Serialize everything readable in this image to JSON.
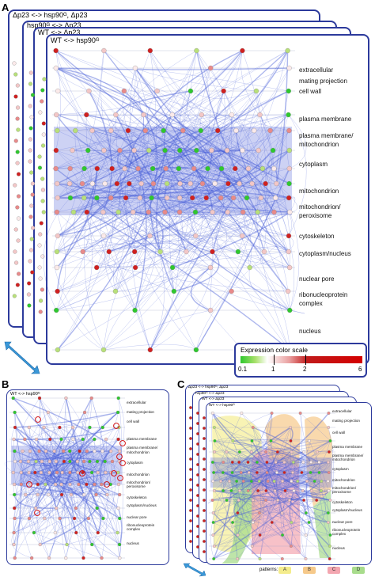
{
  "panels": {
    "a": {
      "label": "A",
      "stack_titles": [
        "Δp23 <-> hsp90ᴳ, Δp23",
        "hsp90ᴳ <-> Δp23",
        "WT <-> Δp23",
        "WT <-> hsp90ᴳ"
      ],
      "locations": [
        "extracellular",
        "mating projection",
        "cell wall",
        "plasma membrane",
        "plasma membrane/",
        "mitochondrion",
        "cytoplasm",
        "mitochondrion",
        "mitochondrion/",
        "peroxisome",
        "cytoskeleton",
        "cytoplasm/nucleus",
        "nuclear pore",
        "ribonucleoprotein",
        "complex",
        "nucleus"
      ]
    },
    "b": {
      "label": "B",
      "title": "WT <-> hsp90ᴳ",
      "locations": [
        "extracellular",
        "mating projection",
        "cell wall",
        "plasma membrane",
        "plasma membrane/",
        "mitochondrion",
        "cytoplasm",
        "mitochondrion",
        "mitochondrion/",
        "peroxisome",
        "cytoskeleton",
        "cytoplasm/nucleus",
        "nuclear pore",
        "ribonucleoprotein",
        "complex",
        "nucleus"
      ]
    },
    "c": {
      "label": "C",
      "stack_titles": [
        "Δp23 <-> hsp90ᴳ, Δp23",
        "hsp90ᴳ <-> Δp23",
        "WT <-> Δp23",
        "WT <-> hsp90ᴳ"
      ],
      "locations": [
        "extracellular",
        "mating projection",
        "cell wall",
        "plasma membrane",
        "plasma membrane/",
        "mitochondrion",
        "cytoplasm",
        "mitochondrion",
        "mitochondrion/",
        "peroxisome",
        "cytoskeleton",
        "cytoplasm/nucleus",
        "nuclear pore",
        "ribonucleoprotein",
        "complex",
        "nucleus"
      ]
    }
  },
  "legend": {
    "title": "Expression color scale",
    "ticks": [
      "0.1",
      "1",
      "2",
      "6"
    ]
  },
  "patterns": {
    "label": "patterns:",
    "items": [
      {
        "letter": "A",
        "color": "#f4ec8c"
      },
      {
        "letter": "B",
        "color": "#f6c98a"
      },
      {
        "letter": "C",
        "color": "#f3a6b0"
      },
      {
        "letter": "D",
        "color": "#a8dc8c"
      }
    ]
  },
  "colors": {
    "frame": "#2c3a9c",
    "edge": "#4a5fd8",
    "high": "#d40000",
    "low": "#2ec82e",
    "arrow": "#3a98d8"
  }
}
